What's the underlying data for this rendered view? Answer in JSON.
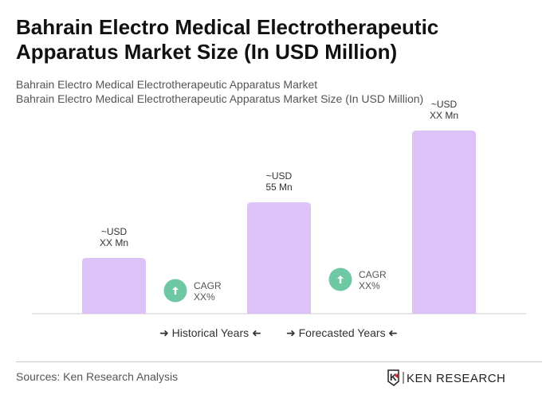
{
  "title": "Bahrain Electro Medical Electrotherapeutic Apparatus Market Size (In USD Million)",
  "subtitle1": "Bahrain Electro Medical Electrotherapeutic Apparatus Market",
  "subtitle2": "Bahrain Electro Medical Electrotherapeutic Apparatus Market Size (In USD Million)",
  "chart_data": {
    "type": "bar",
    "bar_color": "#dcc2f7",
    "values": [
      27.5,
      55,
      90.4
    ],
    "labels": [
      [
        "~USD",
        "XX Mn"
      ],
      [
        "~USD",
        "55 Mn"
      ],
      [
        "~USD",
        "XX Mn"
      ]
    ],
    "cagr": [
      {
        "line1": "CAGR",
        "line2": "XX%"
      },
      {
        "line1": "CAGR",
        "line2": "XX%"
      }
    ],
    "cagr_color": "#6fc8a4",
    "legend": [
      "Historical Years",
      "Forecasted Years"
    ]
  },
  "sources": "Sources: Ken Research Analysis",
  "logo_text": "KEN RESEARCH"
}
